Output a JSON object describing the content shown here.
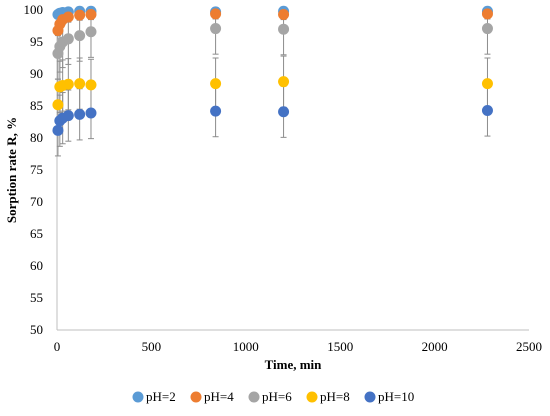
{
  "chart_data": {
    "type": "scatter",
    "xlabel": "Time, min",
    "ylabel": "Sorption rate R, %",
    "xlim": [
      0,
      2500
    ],
    "ylim": [
      50,
      100
    ],
    "x_ticks": [
      "0",
      "500",
      "1000",
      "1500",
      "2000",
      "2500"
    ],
    "y_ticks": [
      "50",
      "55",
      "60",
      "65",
      "70",
      "75",
      "80",
      "85",
      "90",
      "95",
      "100"
    ],
    "grid": false,
    "legend_position": "bottom",
    "series": [
      {
        "name": "pH=2",
        "color": "#5B9BD5",
        "points": [
          [
            5,
            99.3
          ],
          [
            15,
            99.5
          ],
          [
            30,
            99.6
          ],
          [
            60,
            99.7
          ],
          [
            120,
            99.8
          ],
          [
            180,
            99.8
          ],
          [
            840,
            99.7
          ],
          [
            1200,
            99.8
          ],
          [
            2280,
            99.8
          ]
        ],
        "error": [
          0.3,
          0.3,
          0.3,
          0.3,
          0.3,
          0.3,
          0.3,
          0.3,
          0.3
        ]
      },
      {
        "name": "pH=4",
        "color": "#ED7D31",
        "points": [
          [
            5,
            96.8
          ],
          [
            15,
            97.8
          ],
          [
            30,
            98.5
          ],
          [
            60,
            98.9
          ],
          [
            120,
            99.2
          ],
          [
            180,
            99.3
          ],
          [
            840,
            99.4
          ],
          [
            1200,
            99.3
          ],
          [
            2280,
            99.4
          ]
        ],
        "error": [
          0.8,
          0.8,
          0.8,
          0.8,
          0.8,
          0.8,
          0.8,
          0.8,
          0.8
        ]
      },
      {
        "name": "pH=6",
        "color": "#A5A5A5",
        "points": [
          [
            5,
            93.2
          ],
          [
            15,
            94.3
          ],
          [
            30,
            95.0
          ],
          [
            60,
            95.5
          ],
          [
            120,
            96.0
          ],
          [
            180,
            96.6
          ],
          [
            840,
            97.1
          ],
          [
            1200,
            97.0
          ],
          [
            2280,
            97.1
          ]
        ],
        "error": [
          4,
          4,
          4,
          4,
          4,
          4,
          4,
          4,
          4
        ]
      },
      {
        "name": "pH=8",
        "color": "#FFC000",
        "points": [
          [
            5,
            85.2
          ],
          [
            15,
            88.0
          ],
          [
            30,
            88.2
          ],
          [
            60,
            88.4
          ],
          [
            120,
            88.5
          ],
          [
            180,
            88.3
          ],
          [
            840,
            88.5
          ],
          [
            1200,
            88.8
          ],
          [
            2280,
            88.5
          ]
        ],
        "error": [
          4,
          4,
          4,
          4,
          4,
          4,
          4,
          4,
          4
        ]
      },
      {
        "name": "pH=10",
        "color": "#4472C4",
        "points": [
          [
            5,
            81.2
          ],
          [
            15,
            82.7
          ],
          [
            30,
            83.1
          ],
          [
            60,
            83.5
          ],
          [
            120,
            83.7
          ],
          [
            180,
            83.9
          ],
          [
            840,
            84.2
          ],
          [
            1200,
            84.1
          ],
          [
            2280,
            84.3
          ]
        ],
        "error": [
          4,
          4,
          4,
          4,
          4,
          4,
          4,
          4,
          4
        ]
      }
    ]
  }
}
